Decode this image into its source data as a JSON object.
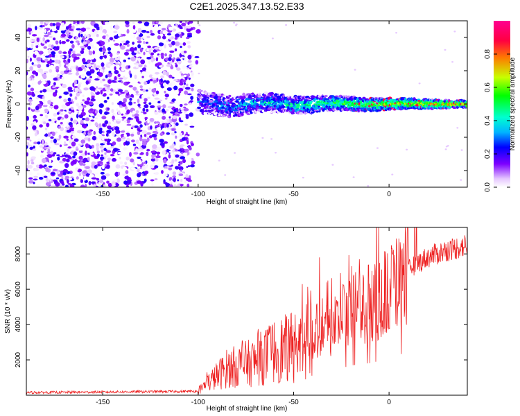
{
  "title": "C2E1.2025.347.13.52.E33",
  "chart_data": [
    {
      "type": "heatmap",
      "name": "spectrogram",
      "xlabel": "Height of straight line (km)",
      "ylabel": "Frequency (Hz)",
      "xlim": [
        -190,
        41
      ],
      "ylim": [
        -50,
        50
      ],
      "xticks": [
        -150,
        -100,
        -50,
        0
      ],
      "yticks": [
        -40,
        -20,
        0,
        20,
        40
      ],
      "colorbar": {
        "label": "Normalized spectral amplitude",
        "range": [
          0,
          1
        ],
        "ticks": [
          0.0,
          0.2,
          0.4,
          0.6,
          0.8
        ],
        "tick_labels": [
          "0.0",
          "0.2",
          "0.4",
          "0.6",
          "0.8"
        ],
        "colors": [
          "#ffffff",
          "#e6c8ff",
          "#7d00ff",
          "#0000ff",
          "#00b4ff",
          "#00ffd0",
          "#00ff00",
          "#c8ff00",
          "#ff7800",
          "#ff0040",
          "#ff0090"
        ]
      },
      "description_regions": [
        {
          "x_range": [
            -190,
            -100
          ],
          "freq_range": [
            -50,
            50
          ],
          "amplitude": "low, broadband noise"
        },
        {
          "x_range": [
            -100,
            41
          ],
          "center_freq": 0,
          "band_halfwidth": [
            8,
            2
          ],
          "amplitude": "high, narrowband signal near 0 Hz"
        }
      ]
    },
    {
      "type": "line",
      "name": "snr",
      "xlabel": "Height of straight line (km)",
      "ylabel": "SNR (10 * v/v)",
      "xlim": [
        -190,
        41
      ],
      "ylim": [
        0,
        9500
      ],
      "xticks": [
        -150,
        -100,
        -50,
        0
      ],
      "yticks": [
        2000,
        4000,
        6000,
        8000
      ],
      "color": "#ee2222",
      "series": [
        {
          "name": "SNR",
          "x": [
            -190,
            -170,
            -150,
            -130,
            -110,
            -100,
            -95,
            -90,
            -85,
            -80,
            -75,
            -70,
            -65,
            -60,
            -55,
            -50,
            -45,
            -40,
            -36,
            -35,
            -30,
            -25,
            -20,
            -17,
            -15,
            -10,
            -5,
            0,
            2,
            5,
            8,
            10,
            15,
            20,
            25,
            30,
            35,
            41
          ],
          "y": [
            150,
            150,
            130,
            150,
            180,
            250,
            700,
            1200,
            1500,
            1800,
            2000,
            1900,
            2200,
            2500,
            2800,
            2600,
            3200,
            3800,
            7500,
            4500,
            3800,
            4200,
            5500,
            7500,
            4800,
            5200,
            5600,
            6000,
            9000,
            6800,
            9500,
            7200,
            7600,
            7800,
            8000,
            8200,
            8400,
            8500
          ]
        }
      ],
      "spikes": [
        {
          "x": -36.5,
          "y": 7800
        },
        {
          "x": -19.5,
          "y": 7300
        },
        {
          "x": -15.5,
          "y": 7700
        },
        {
          "x": 1.5,
          "y": 8300
        },
        {
          "x": 8.5,
          "y": 9500
        }
      ]
    }
  ]
}
